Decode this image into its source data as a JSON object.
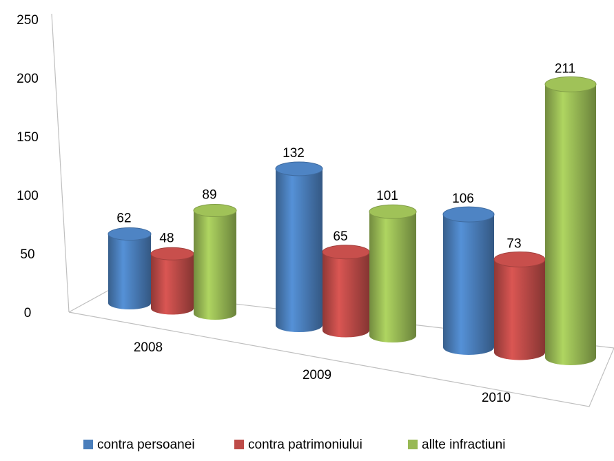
{
  "chart_data": {
    "type": "bar3d",
    "categories": [
      "2008",
      "2009",
      "2010"
    ],
    "series": [
      {
        "name": "contra persoanei",
        "color": "#4a7ebb",
        "values": [
          62,
          132,
          106
        ]
      },
      {
        "name": "contra patrimoniului",
        "color": "#be4b48",
        "values": [
          48,
          65,
          73
        ]
      },
      {
        "name": "allte infractiuni",
        "color": "#98b954",
        "values": [
          89,
          101,
          211
        ]
      }
    ],
    "ylim": [
      0,
      250
    ],
    "yticks": [
      0,
      50,
      100,
      150,
      200,
      250
    ],
    "legend": "bottom"
  }
}
